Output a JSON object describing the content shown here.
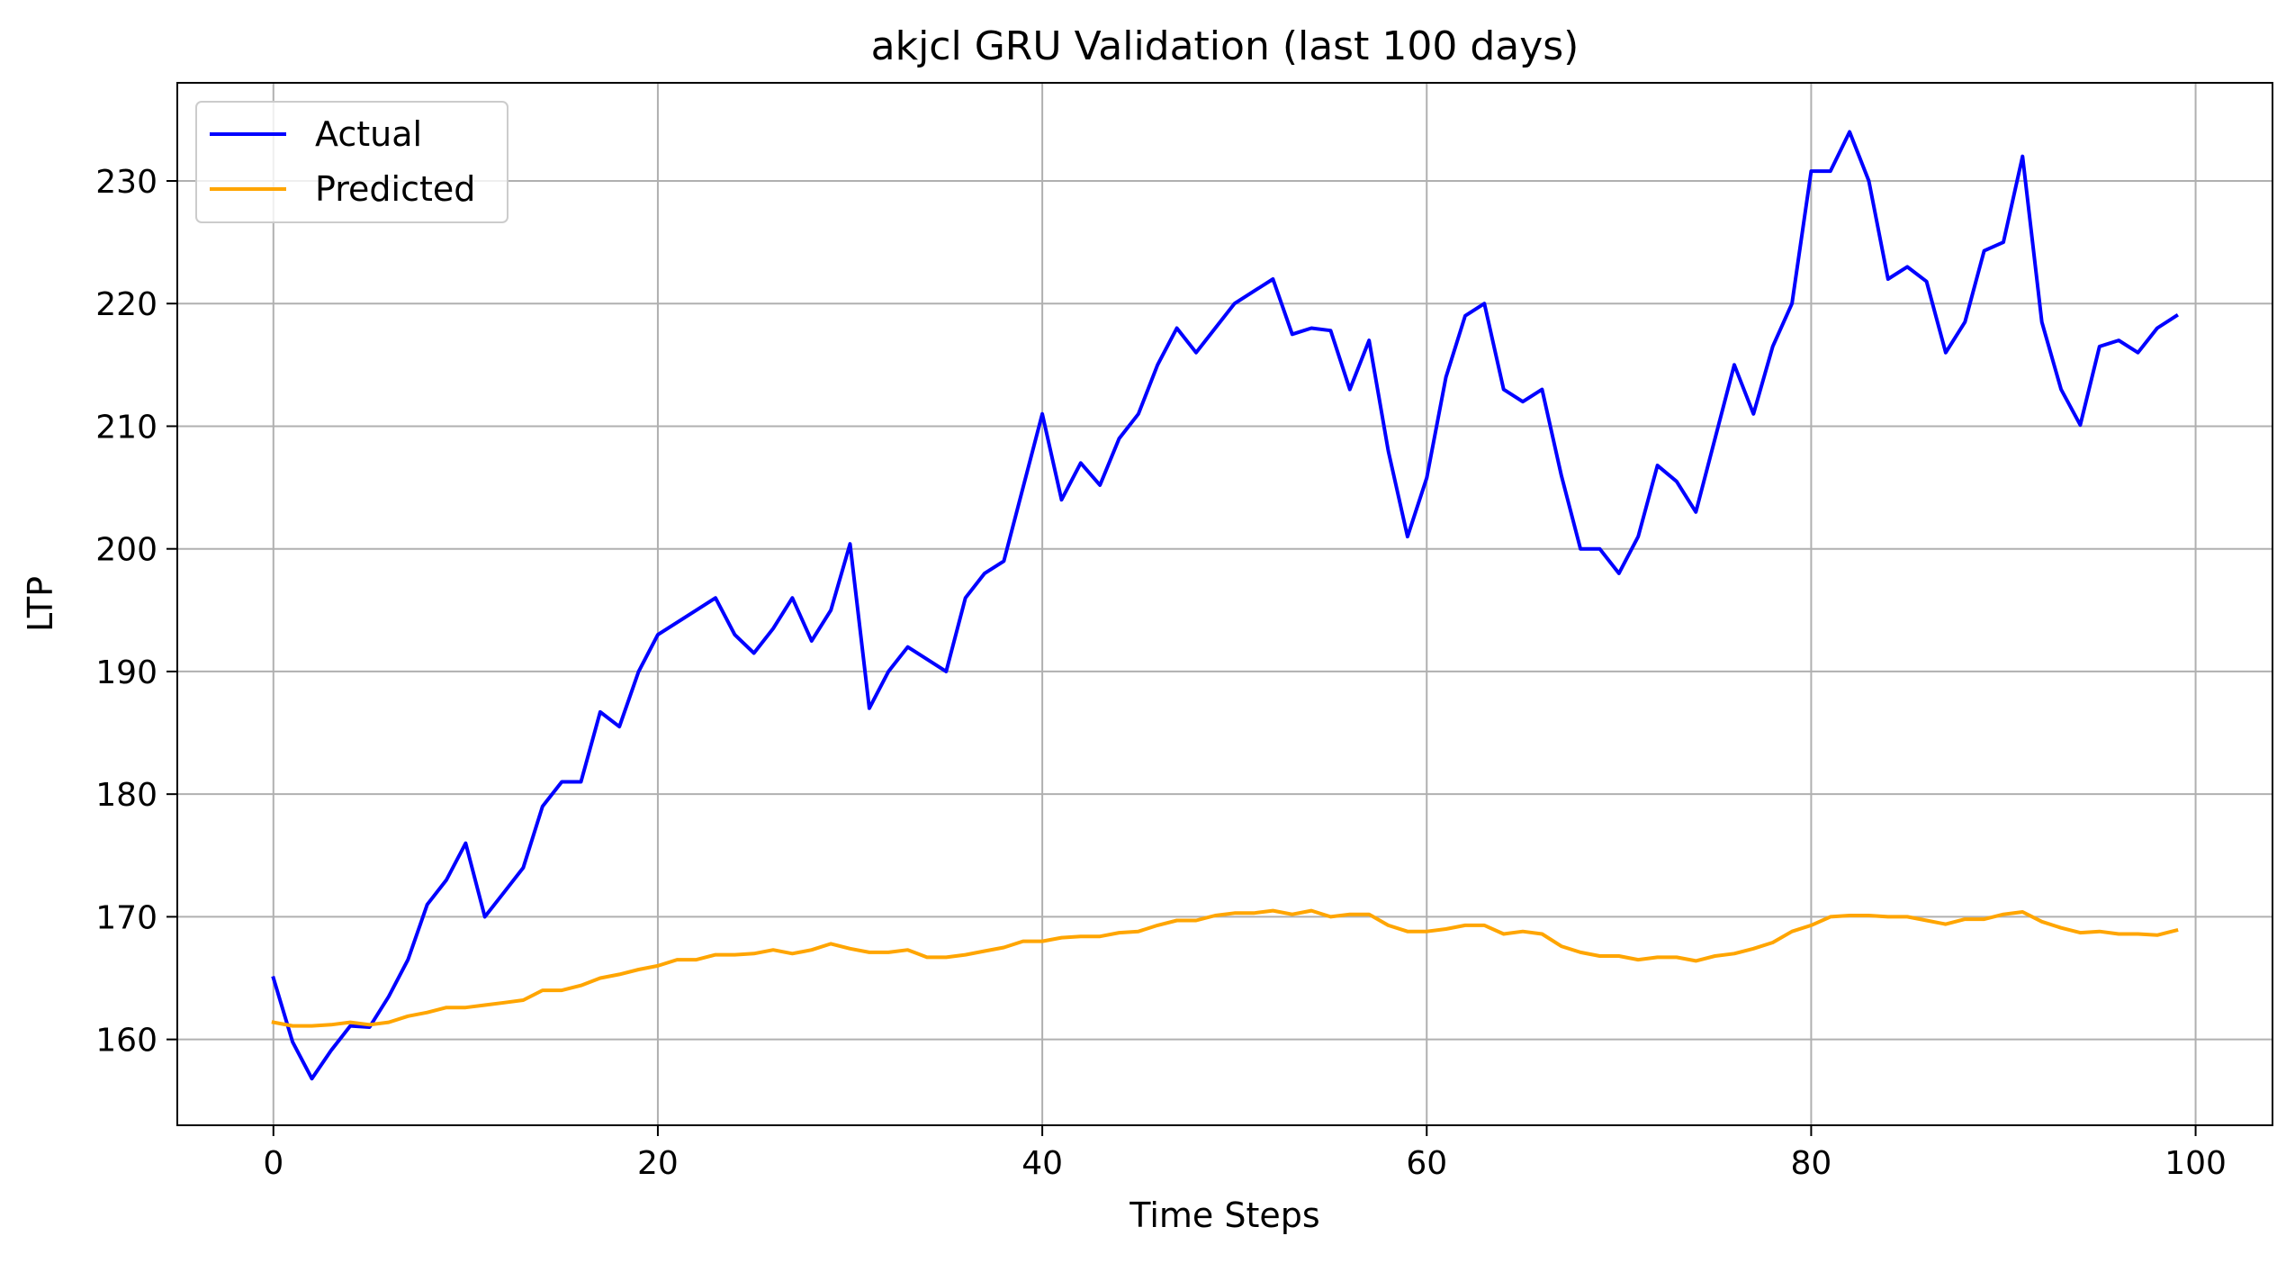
{
  "chart_data": {
    "type": "line",
    "title": "akjcl GRU Validation (last 100 days)",
    "xlabel": "Time Steps",
    "ylabel": "LTP",
    "xlim": [
      -5,
      104
    ],
    "ylim": [
      153,
      238
    ],
    "xticks": [
      0,
      20,
      40,
      60,
      80,
      100
    ],
    "yticks": [
      160,
      170,
      180,
      190,
      200,
      210,
      220,
      230
    ],
    "grid": true,
    "legend_position": "top-left",
    "x": [
      0,
      1,
      2,
      3,
      4,
      5,
      6,
      7,
      8,
      9,
      10,
      11,
      12,
      13,
      14,
      15,
      16,
      17,
      18,
      19,
      20,
      21,
      22,
      23,
      24,
      25,
      26,
      27,
      28,
      29,
      30,
      31,
      32,
      33,
      34,
      35,
      36,
      37,
      38,
      39,
      40,
      41,
      42,
      43,
      44,
      45,
      46,
      47,
      48,
      49,
      50,
      51,
      52,
      53,
      54,
      55,
      56,
      57,
      58,
      59,
      60,
      61,
      62,
      63,
      64,
      65,
      66,
      67,
      68,
      69,
      70,
      71,
      72,
      73,
      74,
      75,
      76,
      77,
      78,
      79,
      80,
      81,
      82,
      83,
      84,
      85,
      86,
      87,
      88,
      89,
      90,
      91,
      92,
      93,
      94,
      95,
      96,
      97,
      98,
      99
    ],
    "series": [
      {
        "name": "Actual",
        "color": "#0000ff",
        "values": [
          165.0,
          159.8,
          156.8,
          159.1,
          161.1,
          161.0,
          163.5,
          166.5,
          171.0,
          173.0,
          176.0,
          170.0,
          172.0,
          174.0,
          179.0,
          181.0,
          181.0,
          186.7,
          185.5,
          190.0,
          193.0,
          194.0,
          195.0,
          196.0,
          193.0,
          191.5,
          193.5,
          196.0,
          192.5,
          195.0,
          200.4,
          187.0,
          190.0,
          192.0,
          191.0,
          190.0,
          196.0,
          198.0,
          199.0,
          205.0,
          211.0,
          204.0,
          207.0,
          205.2,
          209.0,
          211.0,
          215.0,
          218.0,
          216.0,
          218.0,
          220.0,
          221.0,
          222.0,
          217.5,
          218.0,
          217.8,
          213.0,
          217.0,
          208.0,
          201.0,
          205.8,
          214.0,
          219.0,
          220.0,
          213.0,
          212.0,
          213.0,
          206.0,
          200.0,
          200.0,
          198.0,
          201.0,
          206.8,
          205.5,
          203.0,
          209.0,
          215.0,
          211.0,
          216.5,
          220.0,
          230.8,
          230.8,
          234.0,
          230.0,
          222.0,
          223.0,
          221.8,
          216.0,
          218.5,
          224.3,
          225.0,
          232.0,
          218.5,
          213.0,
          210.1,
          216.5,
          217.0,
          216.0,
          218.0,
          219.0
        ]
      },
      {
        "name": "Predicted",
        "color": "#ffa500",
        "values": [
          161.4,
          161.1,
          161.1,
          161.2,
          161.4,
          161.2,
          161.4,
          161.9,
          162.2,
          162.6,
          162.6,
          162.8,
          163.0,
          163.2,
          164.0,
          164.0,
          164.4,
          165.0,
          165.3,
          165.7,
          166.0,
          166.5,
          166.5,
          166.9,
          166.9,
          167.0,
          167.3,
          167.0,
          167.3,
          167.8,
          167.4,
          167.1,
          167.1,
          167.3,
          166.7,
          166.7,
          166.9,
          167.2,
          167.5,
          168.0,
          168.0,
          168.3,
          168.4,
          168.4,
          168.7,
          168.8,
          169.3,
          169.7,
          169.7,
          170.1,
          170.3,
          170.3,
          170.5,
          170.2,
          170.5,
          170.0,
          170.2,
          170.2,
          169.3,
          168.8,
          168.8,
          169.0,
          169.3,
          169.3,
          168.6,
          168.8,
          168.6,
          167.6,
          167.1,
          166.8,
          166.8,
          166.5,
          166.7,
          166.7,
          166.4,
          166.8,
          167.0,
          167.4,
          167.9,
          168.8,
          169.3,
          170.0,
          170.1,
          170.1,
          170.0,
          170.0,
          169.7,
          169.4,
          169.8,
          169.8,
          170.2,
          170.4,
          169.6,
          169.1,
          168.7,
          168.8,
          168.6,
          168.6,
          168.5,
          168.9
        ]
      }
    ]
  }
}
